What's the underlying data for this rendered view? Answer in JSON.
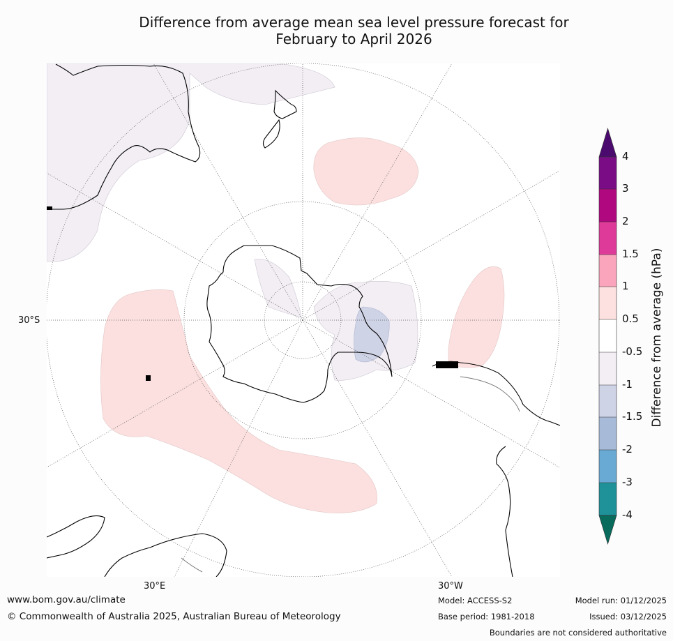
{
  "title_line1": "Difference from average mean sea level pressure forecast for",
  "title_line2": "February to April 2026",
  "map": {
    "projection": "south-polar-stereographic",
    "lat_label": "30°S",
    "lon_labels": [
      "30°E",
      "30°W"
    ],
    "colors": {
      "land": "#ffffff",
      "coast": "#000000",
      "border": "#7a7a7a",
      "grid": "#555555",
      "positive_0_5_to_1": "#fbe0df",
      "negative_0_5_to_1": "#f2eef4",
      "negative_1_to_1_5": "#cfd3e6"
    }
  },
  "colorbar": {
    "label": "Difference from average (hPa)",
    "ticks": [
      "4",
      "3",
      "2",
      "1.5",
      "1",
      "0.5",
      "-0.5",
      "-1",
      "-1.5",
      "-2",
      "-3",
      "-4"
    ],
    "colors": {
      "above_4": "#4a0a6e",
      "3_to_4": "#7a0d85",
      "2_to_3": "#b0087e",
      "1.5_to_2": "#de3a99",
      "1_to_1.5": "#fba5bd",
      "0.5_to_1": "#fde0e0",
      "-0.5_to_0.5": "#ffffff",
      "-1_to_-0.5": "#f2eef4",
      "-1.5_to_-1": "#cfd3e6",
      "-2_to_-1.5": "#a7bbd9",
      "-3_to_-2": "#68aad3",
      "-4_to_-3": "#1e9199",
      "below_-4": "#086b5b"
    }
  },
  "footer": {
    "website": "www.bom.gov.au/climate",
    "copyright": "© Commonwealth of Australia 2025, Australian Bureau of Meteorology",
    "model": "Model: ACCESS-S2",
    "base_period": "Base period: 1981-2018",
    "model_run": "Model run: 01/12/2025",
    "issued": "Issued: 03/12/2025",
    "disclaimer": "Boundaries are not considered authoritative"
  }
}
